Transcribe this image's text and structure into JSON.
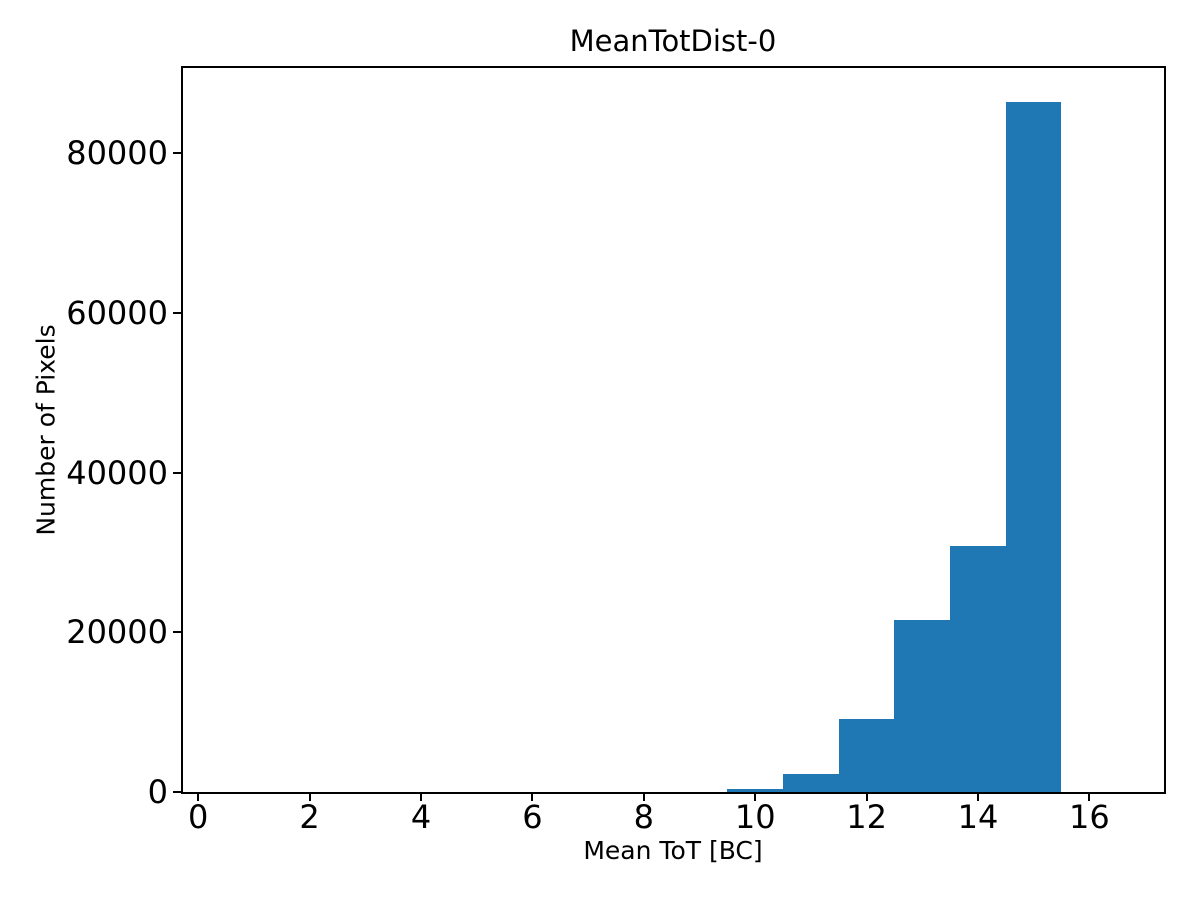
{
  "figure": {
    "title": "MeanTotDist-0",
    "xlabel": "Mean ToT [BC]",
    "ylabel": "Number of Pixels"
  },
  "chart_data": {
    "type": "bar",
    "subtype": "histogram",
    "title": "MeanTotDist-0",
    "xlabel": "Mean ToT [BC]",
    "ylabel": "Number of Pixels",
    "bin_edges": [
      9.5,
      10.5,
      11.5,
      12.5,
      13.5,
      14.5,
      15.5
    ],
    "counts": [
      400,
      2300,
      9100,
      21500,
      30800,
      86400
    ],
    "xticks": [
      0,
      2,
      4,
      6,
      8,
      10,
      12,
      14,
      16
    ],
    "yticks": [
      0,
      20000,
      40000,
      60000,
      80000
    ],
    "xlim": [
      -0.29,
      17.34
    ],
    "ylim": [
      0,
      90770
    ],
    "bar_color": "#1f77b4",
    "grid": false,
    "legend": null,
    "background_color": "#ffffff",
    "spine_color": "#000000"
  }
}
